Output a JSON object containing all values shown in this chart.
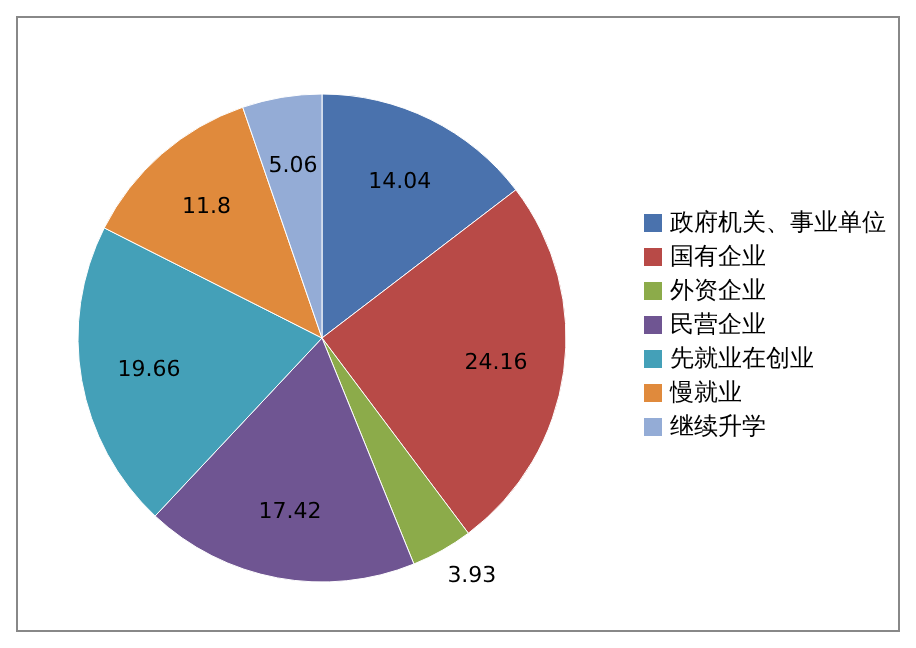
{
  "chart_data": {
    "type": "pie",
    "categories": [
      "政府机关、事业单位",
      "国有企业",
      "外资企业",
      "民营企业",
      "先就业在创业",
      "慢就业",
      "继续升学"
    ],
    "values": [
      14.04,
      24.16,
      3.93,
      17.42,
      19.66,
      11.8,
      5.06
    ],
    "colors": [
      "#4a72ad",
      "#b84a47",
      "#8cab4a",
      "#6f5592",
      "#44a0b8",
      "#e08a3c",
      "#94acd6"
    ],
    "data_labels": true,
    "legend": "right"
  }
}
